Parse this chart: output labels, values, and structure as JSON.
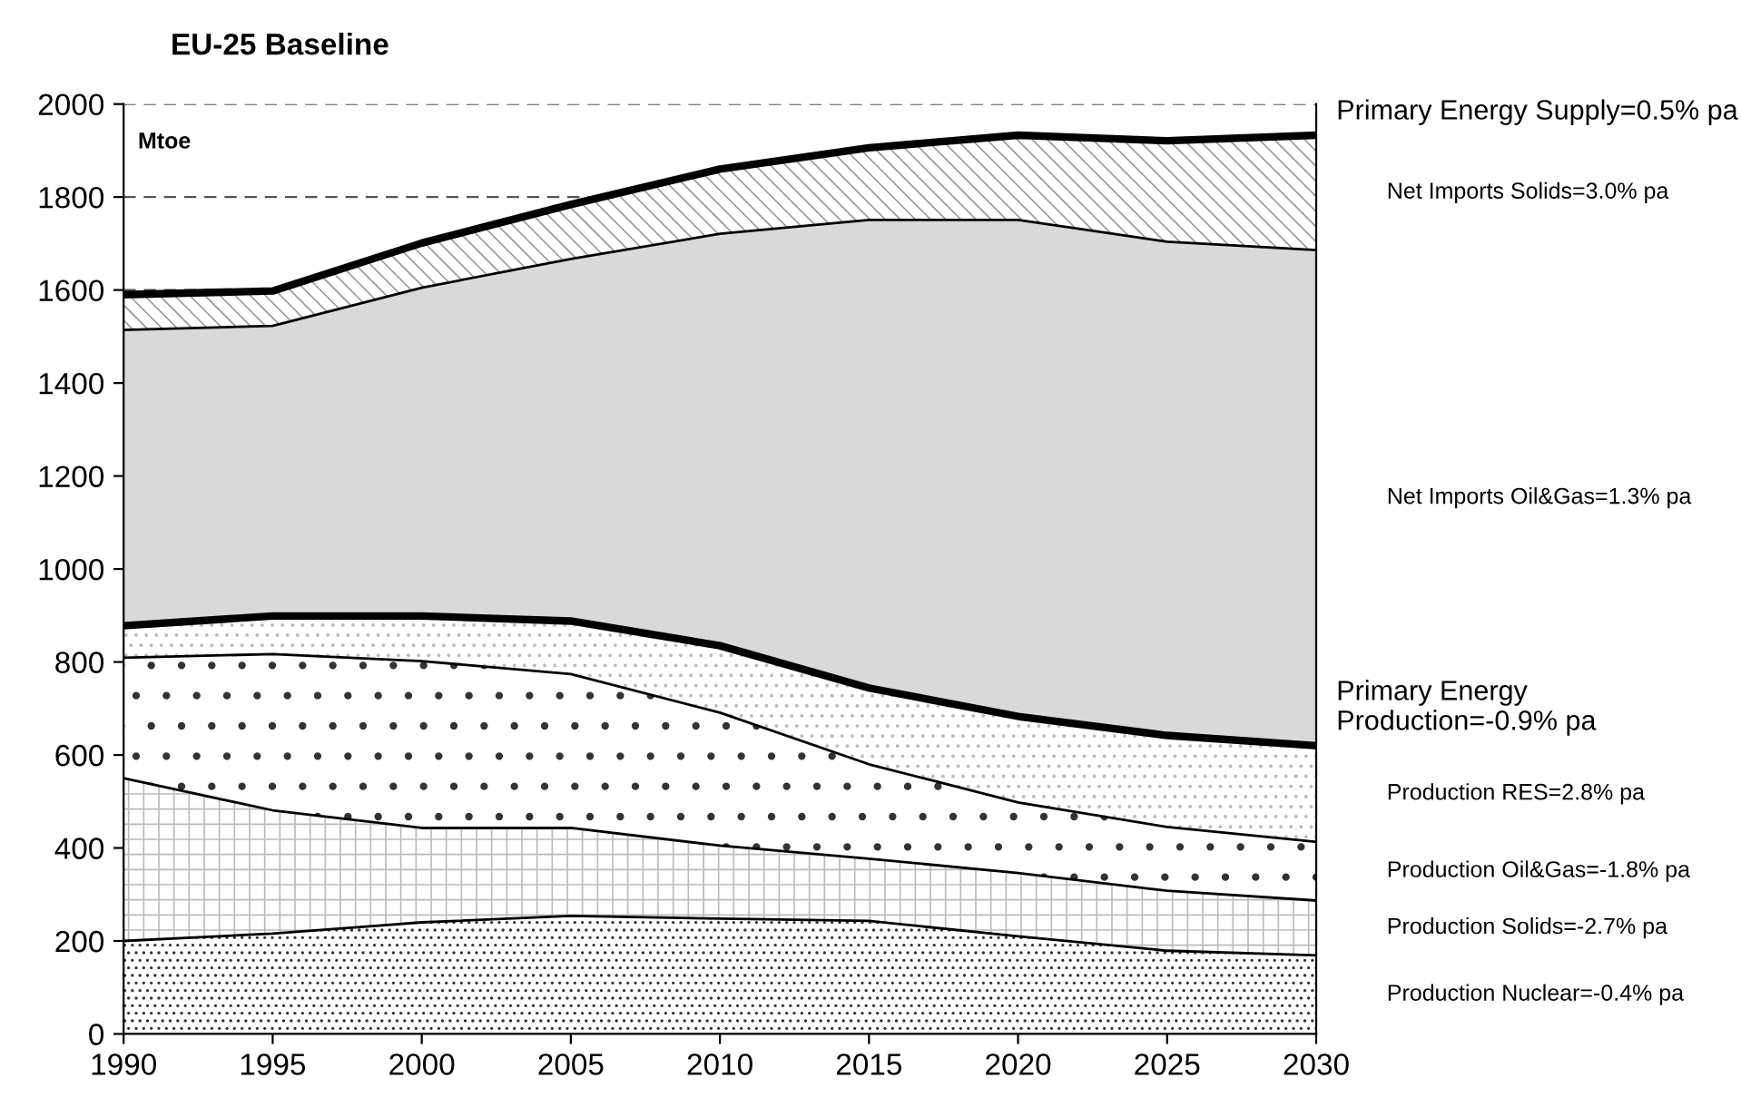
{
  "chart_data": {
    "type": "area",
    "stacked": true,
    "title": "EU-25 Baseline",
    "ylabel": "Mtoe",
    "x": [
      1990,
      1995,
      2000,
      2005,
      2010,
      2015,
      2020,
      2025,
      2030
    ],
    "series": [
      {
        "name": "Production Nuclear=-0.4% pa",
        "color": "#ffffff",
        "values": [
          200,
          216,
          240,
          254,
          248,
          243,
          210,
          179,
          169
        ]
      },
      {
        "name": "Production Solids=-2.7% pa",
        "color": "#ffffff",
        "values": [
          350,
          265,
          203,
          189,
          157,
          134,
          136,
          129,
          118
        ]
      },
      {
        "name": "Production Oil&Gas=-1.8% pa",
        "color": "#ffffff",
        "values": [
          259,
          336,
          359,
          331,
          286,
          203,
          152,
          137,
          126
        ]
      },
      {
        "name": "Production RES=2.8% pa",
        "color": "#ffffff",
        "values": [
          69,
          82,
          97,
          114,
          144,
          164,
          185,
          197,
          207
        ]
      },
      {
        "name": "Net Imports Oil&Gas=1.3% pa",
        "color": "#d9d9d9",
        "values": [
          636,
          624,
          706,
          779,
          886,
          1007,
          1068,
          1062,
          1066
        ]
      },
      {
        "name": "Net Imports Solids=3.0% pa",
        "color": "#ffffff",
        "values": [
          76,
          75,
          96,
          117,
          139,
          155,
          182,
          217,
          247
        ]
      }
    ],
    "annotations": [
      {
        "text": "Primary Energy Supply=0.5% pa",
        "x": 2030,
        "y": 1933
      },
      {
        "text": "Primary Energy Production=-0.9% pa",
        "x": 2030,
        "y": 620
      }
    ],
    "xlim": [
      1990,
      2030
    ],
    "xticks": [
      1990,
      1995,
      2000,
      2005,
      2010,
      2015,
      2020,
      2025,
      2030
    ],
    "ylim": [
      0,
      2000
    ],
    "yticks": [
      0,
      200,
      400,
      600,
      800,
      1000,
      1200,
      1400,
      1600,
      1800,
      2000
    ],
    "grid": "y",
    "legend": false
  }
}
